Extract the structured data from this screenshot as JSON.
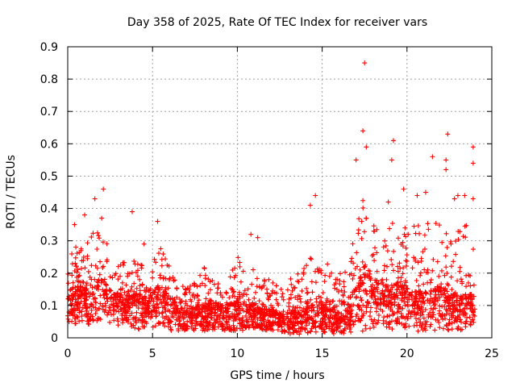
{
  "chart_data": {
    "type": "scatter",
    "title": "Day 358 of 2025, Rate Of TEC Index for receiver vars",
    "xlabel": "GPS time / hours",
    "ylabel": "ROTI / TECUs",
    "xlim": [
      0,
      25
    ],
    "ylim": [
      0,
      0.9
    ],
    "xticks": [
      0,
      5,
      10,
      15,
      20,
      25
    ],
    "yticks": [
      0,
      0.1,
      0.2,
      0.3,
      0.4,
      0.5,
      0.6,
      0.7,
      0.8,
      0.9
    ],
    "xtick_labels": [
      "0",
      "5",
      "10",
      "15",
      "20",
      "25"
    ],
    "ytick_labels": [
      "0",
      "0.1",
      "0.2",
      "0.3",
      "0.4",
      "0.5",
      "0.6",
      "0.7",
      "0.8",
      "0.9"
    ],
    "grid": true,
    "marker": "+",
    "color": "#ff0000",
    "series": [
      {
        "name": "ROTI",
        "envelope": {
          "description": "dense per-epoch ROTI cloud; approximate lower/typical/upper envelope vs. GPS hour",
          "x": [
            0,
            0.5,
            1,
            1.5,
            2,
            2.5,
            3,
            3.5,
            4,
            4.5,
            5,
            5.5,
            6,
            6.5,
            7,
            7.5,
            8,
            8.5,
            9,
            9.5,
            10,
            10.5,
            11,
            11.5,
            12,
            12.5,
            13,
            13.5,
            14,
            14.5,
            15,
            15.5,
            16,
            16.5,
            17,
            17.5,
            18,
            18.5,
            19,
            19.5,
            20,
            20.5,
            21,
            21.5,
            22,
            22.5,
            23,
            23.5,
            24
          ],
          "low": [
            0.05,
            0.04,
            0.04,
            0.03,
            0.04,
            0.03,
            0.04,
            0.03,
            0.02,
            0.03,
            0.03,
            0.03,
            0.02,
            0.02,
            0.02,
            0.02,
            0.02,
            0.02,
            0.02,
            0.02,
            0.02,
            0.02,
            0.02,
            0.02,
            0.02,
            0.02,
            0.01,
            0.01,
            0.01,
            0.02,
            0.01,
            0.01,
            0.01,
            0.01,
            0.02,
            0.02,
            0.02,
            0.03,
            0.02,
            0.02,
            0.02,
            0.02,
            0.02,
            0.02,
            0.02,
            0.02,
            0.02,
            0.03,
            0.03
          ],
          "mid": [
            0.12,
            0.13,
            0.12,
            0.13,
            0.14,
            0.12,
            0.11,
            0.1,
            0.11,
            0.1,
            0.11,
            0.13,
            0.1,
            0.08,
            0.07,
            0.08,
            0.08,
            0.09,
            0.08,
            0.08,
            0.09,
            0.08,
            0.08,
            0.07,
            0.07,
            0.06,
            0.06,
            0.06,
            0.07,
            0.08,
            0.08,
            0.07,
            0.06,
            0.07,
            0.12,
            0.17,
            0.14,
            0.13,
            0.12,
            0.13,
            0.12,
            0.11,
            0.11,
            0.12,
            0.13,
            0.11,
            0.1,
            0.1,
            0.11
          ],
          "high": [
            0.28,
            0.3,
            0.3,
            0.33,
            0.33,
            0.27,
            0.25,
            0.23,
            0.28,
            0.21,
            0.24,
            0.29,
            0.22,
            0.17,
            0.16,
            0.17,
            0.22,
            0.2,
            0.19,
            0.18,
            0.25,
            0.24,
            0.21,
            0.19,
            0.2,
            0.18,
            0.18,
            0.2,
            0.25,
            0.29,
            0.27,
            0.21,
            0.2,
            0.24,
            0.36,
            0.45,
            0.36,
            0.36,
            0.37,
            0.35,
            0.35,
            0.35,
            0.37,
            0.35,
            0.38,
            0.3,
            0.33,
            0.36,
            0.3
          ]
        },
        "notable_points": [
          {
            "x": 0.4,
            "y": 0.35
          },
          {
            "x": 1.0,
            "y": 0.38
          },
          {
            "x": 1.6,
            "y": 0.43
          },
          {
            "x": 2.1,
            "y": 0.46
          },
          {
            "x": 3.8,
            "y": 0.39
          },
          {
            "x": 5.3,
            "y": 0.36
          },
          {
            "x": 14.3,
            "y": 0.41
          },
          {
            "x": 14.6,
            "y": 0.44
          },
          {
            "x": 17.0,
            "y": 0.55
          },
          {
            "x": 17.4,
            "y": 0.64
          },
          {
            "x": 17.5,
            "y": 0.85
          },
          {
            "x": 17.6,
            "y": 0.59
          },
          {
            "x": 19.2,
            "y": 0.61
          },
          {
            "x": 19.1,
            "y": 0.55
          },
          {
            "x": 19.8,
            "y": 0.46
          },
          {
            "x": 21.5,
            "y": 0.56
          },
          {
            "x": 22.3,
            "y": 0.55
          },
          {
            "x": 22.4,
            "y": 0.63
          },
          {
            "x": 22.3,
            "y": 0.52
          },
          {
            "x": 23.0,
            "y": 0.44
          },
          {
            "x": 23.9,
            "y": 0.59
          },
          {
            "x": 23.9,
            "y": 0.54
          },
          {
            "x": 23.9,
            "y": 0.43
          },
          {
            "x": 2.0,
            "y": 0.37
          },
          {
            "x": 4.5,
            "y": 0.29
          },
          {
            "x": 10.8,
            "y": 0.32
          },
          {
            "x": 11.2,
            "y": 0.31
          },
          {
            "x": 18.9,
            "y": 0.42
          },
          {
            "x": 20.6,
            "y": 0.44
          },
          {
            "x": 21.1,
            "y": 0.45
          },
          {
            "x": 22.8,
            "y": 0.43
          },
          {
            "x": 23.4,
            "y": 0.44
          }
        ]
      }
    ]
  }
}
